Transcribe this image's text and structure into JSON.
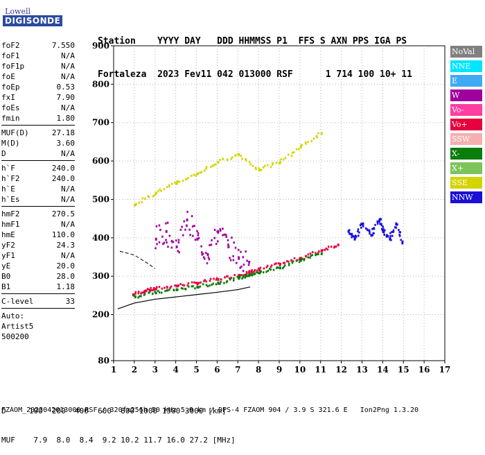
{
  "logo": {
    "top": "Lowell",
    "bottom": "DIGISONDE"
  },
  "header": {
    "line1": "Station    YYYY DAY   DDD HHMMSS P1  FFS S AXN PPS IGA PS",
    "line2": "Fortaleza  2023 Fev11 042 013000 RSF      1 714 100 10+ 11"
  },
  "params": [
    {
      "group": [
        {
          "k": "foF2",
          "v": "7.550"
        },
        {
          "k": "foF1",
          "v": "N/A"
        },
        {
          "k": "foF1p",
          "v": "N/A"
        },
        {
          "k": "foE",
          "v": "N/A"
        },
        {
          "k": "foEp",
          "v": "0.53"
        },
        {
          "k": "fxI",
          "v": "7.90"
        },
        {
          "k": "foEs",
          "v": "N/A"
        },
        {
          "k": "fmin",
          "v": "1.80"
        }
      ]
    },
    {
      "group": [
        {
          "k": "MUF(D)",
          "v": "27.18"
        },
        {
          "k": "M(D)",
          "v": "3.60"
        },
        {
          "k": "D",
          "v": "N/A"
        }
      ]
    },
    {
      "group": [
        {
          "k": "h`F",
          "v": "240.0"
        },
        {
          "k": "h`F2",
          "v": "240.0"
        },
        {
          "k": "h`E",
          "v": "N/A"
        },
        {
          "k": "h`Es",
          "v": "N/A"
        }
      ]
    },
    {
      "group": [
        {
          "k": "hmF2",
          "v": "270.5"
        },
        {
          "k": "hmF1",
          "v": "N/A"
        },
        {
          "k": "hmE",
          "v": "110.0"
        },
        {
          "k": "yF2",
          "v": "24.3"
        },
        {
          "k": "yF1",
          "v": "N/A"
        },
        {
          "k": "yE",
          "v": "20.0"
        },
        {
          "k": "B0",
          "v": "28.0"
        },
        {
          "k": "B1",
          "v": "1.18"
        }
      ]
    },
    {
      "group": [
        {
          "k": "C-level",
          "v": "33"
        }
      ]
    }
  ],
  "meta_lines": [
    "Auto:",
    "Artist5",
    "500200"
  ],
  "bottom": {
    "line1": "D     100  200  400  600  800 1000 1500 3000 [km]",
    "line2": "MUF    7.9  8.0  8.4  9.2 10.2 11.7 16.0 27.2 [MHz]"
  },
  "footer": "FZAOM_2023042013000.RSF / 320fx256h 50 kHz 5.0 km / DPS-4 FZAOM 904 / 3.9 S 321.6 E   Ion2Png 1.3.20",
  "legend": [
    {
      "label": "NoVal",
      "color": "#808080"
    },
    {
      "label": "NNE",
      "color": "#00e5ff"
    },
    {
      "label": "E",
      "color": "#3fa9f5"
    },
    {
      "label": "W",
      "color": "#a0009e"
    },
    {
      "label": "Vo-",
      "color": "#ff3fa0"
    },
    {
      "label": "Vo+",
      "color": "#e8003c"
    },
    {
      "label": "SSW",
      "color": "#f4b0b0"
    },
    {
      "label": "X-",
      "color": "#0a7d0a"
    },
    {
      "label": "X+",
      "color": "#7cc45a"
    },
    {
      "label": "SSE",
      "color": "#d4d400"
    },
    {
      "label": "NNW",
      "color": "#1a10d8"
    }
  ],
  "chart_data": {
    "type": "scatter",
    "xlim": [
      1,
      17
    ],
    "ylim": [
      80,
      900
    ],
    "xticks": [
      1,
      2,
      3,
      4,
      5,
      6,
      7,
      8,
      9,
      10,
      11,
      12,
      13,
      14,
      15,
      16,
      17
    ],
    "yticks": [
      80,
      200,
      300,
      400,
      500,
      600,
      700,
      800,
      900
    ],
    "grid": "dotted",
    "series": [
      {
        "name": "O-trace",
        "color": "#e8003c",
        "points": [
          [
            1.9,
            255
          ],
          [
            2.5,
            265
          ],
          [
            3,
            270
          ],
          [
            4,
            278
          ],
          [
            5,
            285
          ],
          [
            6,
            295
          ],
          [
            7,
            305
          ],
          [
            7.5,
            312
          ],
          [
            8,
            320
          ],
          [
            9,
            335
          ],
          [
            10,
            350
          ],
          [
            11,
            370
          ],
          [
            11.8,
            385
          ]
        ]
      },
      {
        "name": "X-trace",
        "color": "#0a7d0a",
        "points": [
          [
            2,
            250
          ],
          [
            3,
            260
          ],
          [
            4,
            268
          ],
          [
            5,
            275
          ],
          [
            6,
            285
          ],
          [
            7,
            298
          ],
          [
            7.5,
            305
          ],
          [
            8,
            312
          ],
          [
            9,
            325
          ],
          [
            10,
            345
          ],
          [
            11,
            362
          ]
        ]
      },
      {
        "name": "Spread-F",
        "color": "#a0009e",
        "points": [
          [
            3,
            400
          ],
          [
            3.5,
            420
          ],
          [
            4,
            380
          ],
          [
            4.5,
            450
          ],
          [
            5,
            400
          ],
          [
            5.5,
            360
          ],
          [
            6,
            420
          ],
          [
            6.5,
            380
          ],
          [
            7,
            350
          ],
          [
            7.5,
            340
          ]
        ]
      },
      {
        "name": "Multi-hop",
        "color": "#d4d400",
        "points": [
          [
            2,
            490
          ],
          [
            3,
            520
          ],
          [
            4,
            545
          ],
          [
            5,
            570
          ],
          [
            6,
            600
          ],
          [
            7,
            620
          ],
          [
            8,
            580
          ],
          [
            9,
            600
          ],
          [
            10,
            640
          ],
          [
            11,
            675
          ]
        ]
      },
      {
        "name": "NNW-returns",
        "color": "#1a10d8",
        "points": [
          [
            12.3,
            420
          ],
          [
            12.6,
            400
          ],
          [
            13,
            440
          ],
          [
            13.4,
            410
          ],
          [
            13.8,
            450
          ],
          [
            14,
            420
          ],
          [
            14.3,
            400
          ],
          [
            14.6,
            440
          ],
          [
            14.9,
            390
          ]
        ]
      }
    ],
    "profile_curve": [
      [
        1.2,
        215
      ],
      [
        2,
        230
      ],
      [
        3,
        240
      ],
      [
        4,
        246
      ],
      [
        5,
        252
      ],
      [
        6,
        258
      ],
      [
        7,
        265
      ],
      [
        7.6,
        272
      ]
    ],
    "dashed_curve": [
      [
        1.3,
        365
      ],
      [
        2,
        355
      ],
      [
        2.6,
        335
      ],
      [
        3,
        320
      ]
    ]
  }
}
